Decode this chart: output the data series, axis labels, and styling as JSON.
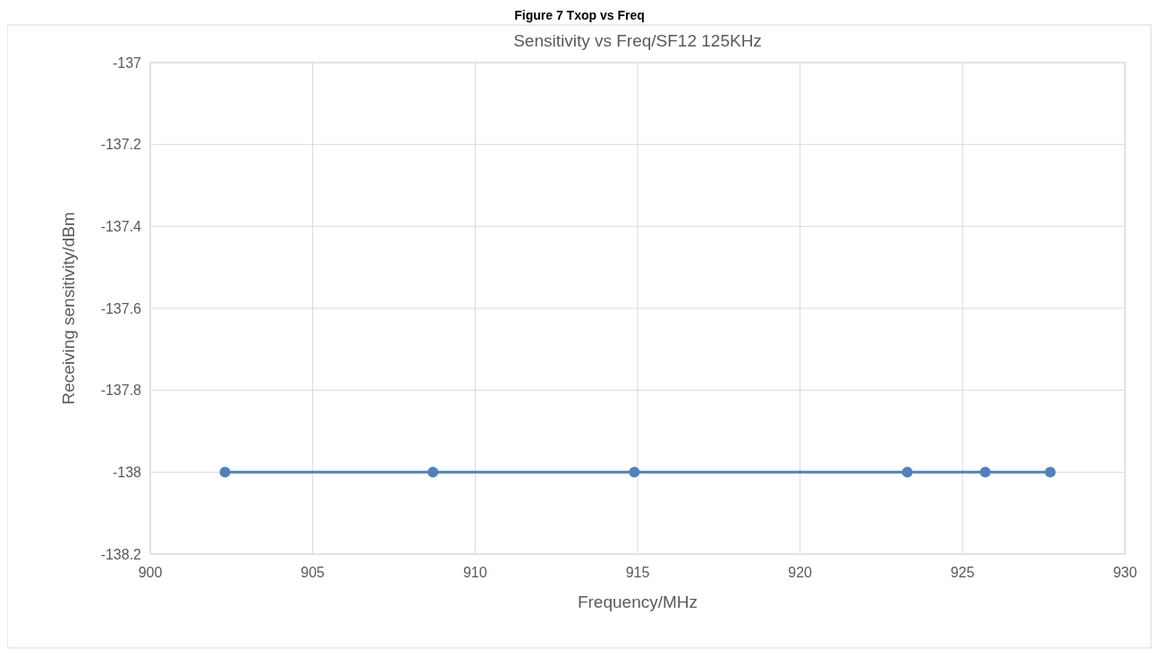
{
  "chart_data": {
    "type": "line",
    "title": "Sensitivity vs Freq/SF12 125KHz",
    "xlabel": "Frequency/MHz",
    "ylabel": "Receiving sensitivity/dBm",
    "annotations": [
      "Figure 7 Txop vs Freq"
    ],
    "x": [
      902.3,
      908.7,
      914.9,
      923.3,
      925.7,
      927.7
    ],
    "series": [
      {
        "color": "#4f81bd",
        "values": [
          -138,
          -138,
          -138,
          -138,
          -138,
          -138
        ]
      }
    ],
    "xlim": [
      900,
      930
    ],
    "xticks": [
      900,
      905,
      910,
      915,
      920,
      925,
      930
    ],
    "ylim": [
      -138.2,
      -137
    ],
    "yticks": [
      -138.2,
      -138,
      -137.8,
      -137.6,
      -137.4,
      -137.2,
      -137
    ],
    "grid": true,
    "marker": "circle"
  }
}
